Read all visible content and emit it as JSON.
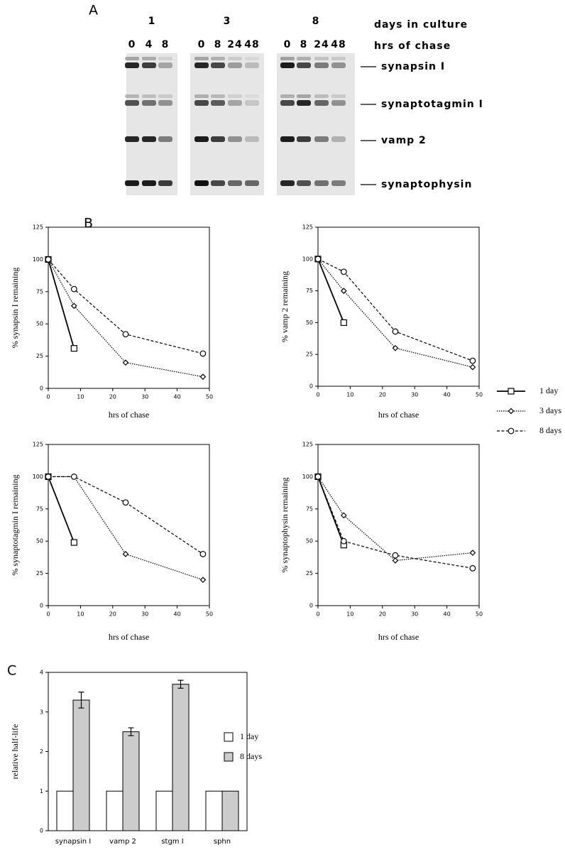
{
  "panel_labels": [
    "A",
    "B",
    "C"
  ],
  "blot": {
    "days_label": "days in culture",
    "chase_label": "hrs of chase",
    "groups": [
      {
        "day": "1",
        "lanes": [
          "0",
          "4",
          "8"
        ]
      },
      {
        "day": "3",
        "lanes": [
          "0",
          "8",
          "24",
          "48"
        ]
      },
      {
        "day": "8",
        "lanes": [
          "0",
          "8",
          "24",
          "48"
        ]
      }
    ],
    "proteins": [
      "synapsin I",
      "synaptotagmin I",
      "vamp 2",
      "synaptophysin"
    ]
  },
  "chart_data": [
    {
      "type": "line",
      "ylabel": "% synapsin I remaining",
      "xlabel": "hrs of chase",
      "xlim": [
        0,
        50
      ],
      "xticks": [
        0,
        10,
        20,
        30,
        40,
        50
      ],
      "ylim": [
        0,
        125
      ],
      "yticks": [
        0,
        25,
        50,
        75,
        100,
        125
      ],
      "legend": "right",
      "series": [
        {
          "name": "1 day",
          "color": "#000000",
          "style": "solid",
          "marker": "square",
          "x": [
            0,
            8
          ],
          "values": [
            100,
            31
          ]
        },
        {
          "name": "3 days",
          "color": "#000000",
          "style": "dotted",
          "marker": "diamond",
          "x": [
            0,
            8,
            24,
            48
          ],
          "values": [
            100,
            64,
            20,
            9
          ]
        },
        {
          "name": "8 days",
          "color": "#000000",
          "style": "dashed",
          "marker": "circle",
          "x": [
            0,
            8,
            24,
            48
          ],
          "values": [
            100,
            77,
            42,
            27
          ]
        }
      ]
    },
    {
      "type": "line",
      "ylabel": "% vamp 2 remaining",
      "xlabel": "hrs of chase",
      "xlim": [
        0,
        50
      ],
      "xticks": [
        0,
        10,
        20,
        30,
        40,
        50
      ],
      "ylim": [
        0,
        125
      ],
      "yticks": [
        0,
        25,
        50,
        75,
        100,
        125
      ],
      "series": [
        {
          "color": "#000000",
          "style": "solid",
          "marker": "square",
          "x": [
            0,
            8
          ],
          "values": [
            100,
            50
          ]
        },
        {
          "color": "#000000",
          "style": "dotted",
          "marker": "diamond",
          "x": [
            0,
            8,
            24,
            48
          ],
          "values": [
            100,
            75,
            30,
            15
          ]
        },
        {
          "color": "#000000",
          "style": "dashed",
          "marker": "circle",
          "x": [
            0,
            8,
            24,
            48
          ],
          "values": [
            100,
            90,
            43,
            20
          ]
        }
      ]
    },
    {
      "type": "line",
      "ylabel": "% synaptotagmin I remaining",
      "xlabel": "hrs of chase",
      "xlim": [
        0,
        50
      ],
      "xticks": [
        0,
        10,
        20,
        30,
        40,
        50
      ],
      "ylim": [
        0,
        125
      ],
      "yticks": [
        0,
        25,
        50,
        75,
        100,
        125
      ],
      "series": [
        {
          "color": "#000000",
          "style": "solid",
          "marker": "square",
          "x": [
            0,
            8
          ],
          "values": [
            100,
            49
          ]
        },
        {
          "color": "#000000",
          "style": "dotted",
          "marker": "diamond",
          "x": [
            0,
            8,
            24,
            48
          ],
          "values": [
            100,
            100,
            40,
            20
          ]
        },
        {
          "color": "#000000",
          "style": "dashed",
          "marker": "circle",
          "x": [
            0,
            8,
            24,
            48
          ],
          "values": [
            100,
            100,
            80,
            40
          ]
        }
      ]
    },
    {
      "type": "line",
      "ylabel": "% synaptophysin remaining",
      "xlabel": "hrs of chase",
      "xlim": [
        0,
        50
      ],
      "xticks": [
        0,
        10,
        20,
        30,
        40,
        50
      ],
      "ylim": [
        0,
        125
      ],
      "yticks": [
        0,
        25,
        50,
        75,
        100,
        125
      ],
      "series": [
        {
          "color": "#000000",
          "style": "solid",
          "marker": "square",
          "x": [
            0,
            8
          ],
          "values": [
            100,
            47
          ]
        },
        {
          "color": "#000000",
          "style": "dotted",
          "marker": "diamond",
          "x": [
            0,
            8,
            24,
            48
          ],
          "values": [
            100,
            70,
            35,
            41
          ]
        },
        {
          "color": "#000000",
          "style": "dashed",
          "marker": "circle",
          "x": [
            0,
            8,
            24,
            48
          ],
          "values": [
            100,
            50,
            39,
            29
          ]
        }
      ]
    },
    {
      "type": "bar",
      "ylabel": "relative half-life",
      "categories": [
        "synapsin I",
        "vamp 2",
        "stgm I",
        "sphn"
      ],
      "ylim": [
        0,
        4
      ],
      "yticks": [
        0,
        1,
        2,
        3,
        4
      ],
      "legend": "right",
      "series": [
        {
          "name": "1 day",
          "color": "#ffffff",
          "values": [
            1,
            1,
            1,
            1
          ]
        },
        {
          "name": "8 days",
          "color": "#cccccc",
          "values": [
            3.3,
            2.5,
            3.7,
            1
          ],
          "errors": [
            0.2,
            0.1,
            0.1,
            null
          ]
        }
      ]
    }
  ]
}
